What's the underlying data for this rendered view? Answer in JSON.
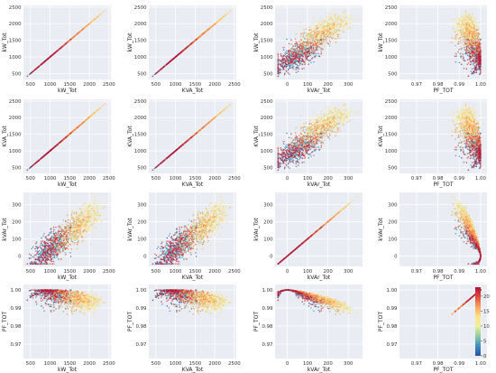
{
  "chart_data": {
    "type": "scatter",
    "layout": "pairplot",
    "rows": 4,
    "cols": 4,
    "variables": [
      "kW_Tot",
      "KVA_Tot",
      "kVAr_Tot",
      "PF_TOT"
    ],
    "axis_ranges": {
      "kW_Tot": [
        320,
        2550
      ],
      "KVA_Tot": [
        320,
        2550
      ],
      "kVAr_Tot": [
        -60,
        370
      ],
      "PF_TOT": [
        0.962,
        1.003
      ]
    },
    "ticks": {
      "kW_Tot": [
        "500",
        "1000",
        "1500",
        "2000",
        "2500"
      ],
      "KVA_Tot": [
        "500",
        "1000",
        "1500",
        "2000",
        "2500"
      ],
      "kVAr_Tot": [
        "0",
        "100",
        "200",
        "300"
      ],
      "PF_TOT": [
        "0.97",
        "0.98",
        "0.99",
        "1.00"
      ]
    },
    "tick_values": {
      "kW_Tot": [
        500,
        1000,
        1500,
        2000,
        2500
      ],
      "KVA_Tot": [
        500,
        1000,
        1500,
        2000,
        2500
      ],
      "kVAr_Tot": [
        0,
        100,
        200,
        300
      ],
      "PF_TOT": [
        0.97,
        0.98,
        0.99,
        1.0
      ]
    },
    "y_ticks": {
      "kW_Tot": [
        "500",
        "1000",
        "1500",
        "2000",
        "2500"
      ],
      "KVA_Tot": [
        "500",
        "1000",
        "1500",
        "2000",
        "2500"
      ],
      "kVAr_Tot": [
        "0",
        "100",
        "200",
        "300"
      ],
      "PF_TOT": [
        "0.97",
        "0.98",
        "0.99",
        "1.00"
      ]
    },
    "y_tick_values": {
      "kW_Tot": [
        500,
        1000,
        1500,
        2000,
        2500
      ],
      "KVA_Tot": [
        500,
        1000,
        1500,
        2000,
        2500
      ],
      "kVAr_Tot": [
        0,
        100,
        200,
        300
      ],
      "PF_TOT": [
        0.97,
        0.98,
        0.99,
        1.0
      ]
    },
    "color_variable_range": [
      0,
      23
    ],
    "colorbar_ticks": [
      0,
      5,
      10,
      15,
      20
    ],
    "colormap": [
      "#2b4f9e",
      "#3c8fbf",
      "#8fc9a6",
      "#e9f29b",
      "#fee38b",
      "#f9a35b",
      "#e04d3c",
      "#b0113a"
    ],
    "grid": true,
    "background": "#e9ecf3",
    "colorbar_position": "right of bottom-right panel"
  }
}
